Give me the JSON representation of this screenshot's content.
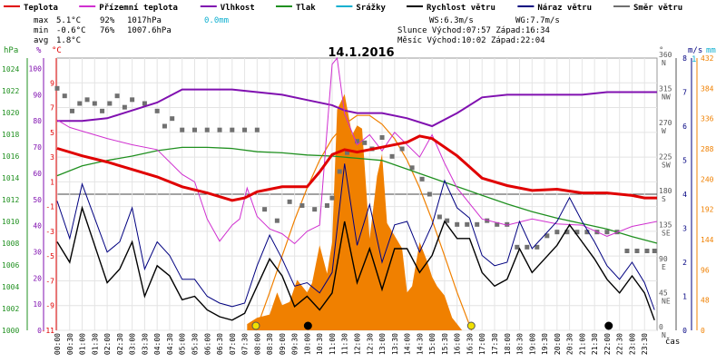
{
  "chart_data": {
    "type": "line",
    "title": "14.1.2016",
    "legend": [
      {
        "label": "Teplota",
        "color": "#e00000"
      },
      {
        "label": "Přízemní teplota",
        "color": "#d030d0"
      },
      {
        "label": "Vlhkost",
        "color": "#8010b0"
      },
      {
        "label": "Tlak",
        "color": "#209020"
      },
      {
        "label": "Srážky",
        "color": "#10b0d0"
      },
      {
        "label": "Rychlost větru",
        "color": "#000000"
      },
      {
        "label": "Náraz větru",
        "color": "#000080"
      },
      {
        "label": "Směr větru",
        "color": "#707070"
      }
    ],
    "stats": {
      "max_label": "max",
      "max_temp": "5.1°C",
      "max_hum": "92%",
      "max_pres": "1017hPa",
      "max_rain": "0.0mm",
      "min_label": "min",
      "min_temp": "-0.6°C",
      "min_hum": "76%",
      "min_pres": "1007.6hPa",
      "avg_label": "avg",
      "avg_temp": "1.8°C",
      "ws": "WS:6.3m/s",
      "wg": "WG:7.7m/s",
      "sun": "Slunce Východ:07:57  Západ:16:34",
      "moon": "Měsíc  Východ:10:02  Západ:22:04"
    },
    "axes": {
      "hpa_title": "hPa",
      "pct_title": "%",
      "temp_title": "°C",
      "deg_title": "°",
      "ms_title": "m/s",
      "mm_title": "mm",
      "ms_top": "1",
      "time_title": "čas",
      "hpa_ticks": [
        "1000",
        "1002",
        "1004",
        "1006",
        "1008",
        "1010",
        "1012",
        "1014",
        "1016",
        "1018",
        "1020",
        "1022",
        "1024"
      ],
      "pct_ticks": [
        "0",
        "10",
        "20",
        "30",
        "40",
        "50",
        "60",
        "70",
        "80",
        "90",
        "100"
      ],
      "temp_ticks": [
        "-11",
        "-9",
        "-7",
        "-5",
        "-3",
        "-1",
        "1",
        "3",
        "5",
        "7",
        "9"
      ],
      "deg_ticks": [
        "0",
        "45",
        "90",
        "135",
        "180",
        "225",
        "270",
        "315",
        "360"
      ],
      "dir_ticks": [
        "N",
        "NE",
        "E",
        "SE",
        "S",
        "SW",
        "W",
        "NW",
        "N"
      ],
      "ms_ticks": [
        "0",
        "1",
        "2",
        "3",
        "4",
        "5",
        "6",
        "7",
        "8"
      ],
      "solar_ticks": [
        "0",
        "48",
        "96",
        "144",
        "192",
        "240",
        "288",
        "336",
        "384",
        "432"
      ],
      "time_ticks": [
        "00:00",
        "00:30",
        "01:00",
        "01:30",
        "02:00",
        "02:30",
        "03:00",
        "03:30",
        "04:00",
        "04:30",
        "05:00",
        "05:30",
        "06:00",
        "06:30",
        "07:00",
        "07:30",
        "08:00",
        "08:30",
        "09:00",
        "09:30",
        "10:00",
        "10:30",
        "11:00",
        "11:30",
        "12:00",
        "12:30",
        "13:00",
        "13:30",
        "14:00",
        "14:30",
        "15:00",
        "15:30",
        "16:00",
        "16:30",
        "17:00",
        "17:30",
        "18:00",
        "18:30",
        "19:00",
        "19:30",
        "20:00",
        "20:30",
        "21:00",
        "21:30",
        "22:00",
        "22:30",
        "23:00",
        "23:30"
      ],
      "temp_range": [
        -11,
        11
      ],
      "hum_range": [
        0,
        104
      ],
      "pres_range": [
        1000,
        1025
      ],
      "wind_range": [
        0,
        8
      ],
      "dir_range": [
        0,
        360
      ],
      "solar_range": [
        0,
        432
      ]
    },
    "series": {
      "temperature": {
        "t": [
          0,
          1,
          2,
          3,
          4,
          5,
          6,
          7,
          7.5,
          8,
          9,
          10,
          10.5,
          11,
          11.5,
          12,
          13,
          14,
          14.5,
          15,
          16,
          17,
          18,
          19,
          20,
          21,
          22,
          22.5,
          23,
          23.5,
          24
        ],
        "v": [
          3.7,
          3.1,
          2.6,
          2.0,
          1.4,
          0.6,
          0.1,
          -0.5,
          -0.3,
          0.2,
          0.6,
          0.6,
          1.8,
          3.2,
          3.6,
          3.4,
          3.8,
          4.2,
          4.7,
          4.5,
          3.1,
          1.3,
          0.7,
          0.3,
          0.4,
          0.1,
          0.1,
          0.0,
          -0.1,
          -0.3,
          -0.3
        ]
      },
      "ground_temperature": {
        "t": [
          0,
          0.5,
          1,
          2,
          3,
          4,
          5,
          5.5,
          6,
          6.5,
          7,
          7.3,
          7.6,
          8,
          8.5,
          9,
          9.5,
          10,
          10.5,
          11,
          11.2,
          11.5,
          12,
          12.5,
          13,
          13.5,
          14,
          14.5,
          15,
          15.5,
          16,
          17,
          18,
          19,
          20,
          21,
          22,
          23,
          24
        ],
        "v": [
          6.0,
          5.4,
          5.1,
          4.5,
          4.0,
          3.6,
          1.6,
          1.0,
          -2.0,
          -3.8,
          -2.5,
          -2.0,
          0.5,
          -1.8,
          -2.8,
          -3.2,
          -4.0,
          -3.0,
          -2.5,
          10.5,
          11.0,
          6.5,
          4.0,
          4.8,
          3.5,
          5.0,
          4.0,
          3.0,
          4.8,
          2.5,
          0.5,
          -2.0,
          -2.5,
          -2.0,
          -2.4,
          -2.5,
          -3.4,
          -2.6,
          -2.2
        ]
      },
      "humidity": {
        "t": [
          0,
          1,
          2,
          3,
          4,
          5,
          6,
          7,
          8,
          9,
          10,
          11,
          11.5,
          12,
          13,
          14,
          15,
          16,
          17,
          18,
          19,
          20,
          21,
          22,
          23,
          24
        ],
        "v": [
          80,
          80,
          81,
          84,
          87,
          92,
          92,
          92,
          91,
          90,
          88,
          86,
          84,
          83,
          83,
          81,
          78,
          83,
          89,
          90,
          90,
          90,
          90,
          91,
          91,
          91
        ]
      },
      "pressure": {
        "t": [
          0,
          1,
          2,
          3,
          4,
          5,
          6,
          7,
          8,
          9,
          10,
          11,
          12,
          13,
          14,
          15,
          16,
          17,
          18,
          19,
          20,
          21,
          22,
          23,
          24
        ],
        "v": [
          1014.2,
          1015.1,
          1015.6,
          1016.0,
          1016.5,
          1016.8,
          1016.8,
          1016.7,
          1016.4,
          1016.3,
          1016.1,
          1016.0,
          1015.8,
          1015.6,
          1014.8,
          1014.0,
          1013.2,
          1012.4,
          1011.6,
          1010.9,
          1010.3,
          1009.8,
          1009.3,
          1008.6,
          1008.0
        ]
      },
      "wind_speed": {
        "t": [
          0,
          0.5,
          1,
          1.5,
          2,
          2.5,
          3,
          3.5,
          4,
          4.5,
          5,
          5.5,
          6,
          6.5,
          7,
          7.5,
          8,
          8.5,
          9,
          9.5,
          10,
          10.5,
          11,
          11.5,
          12,
          12.5,
          13,
          13.5,
          14,
          14.5,
          15,
          15.5,
          16,
          16.5,
          17,
          17.5,
          18,
          18.5,
          19,
          19.5,
          20,
          20.5,
          21,
          21.5,
          22,
          22.5,
          23,
          23.5,
          23.9
        ],
        "v": [
          2.6,
          2.0,
          3.6,
          2.5,
          1.4,
          1.8,
          2.6,
          1.0,
          1.9,
          1.6,
          0.9,
          1.0,
          0.6,
          0.4,
          0.3,
          0.5,
          1.3,
          2.1,
          1.6,
          0.7,
          1.0,
          0.6,
          1.1,
          3.2,
          1.4,
          2.4,
          1.2,
          2.4,
          2.4,
          1.7,
          2.2,
          3.2,
          2.7,
          2.7,
          1.7,
          1.3,
          1.5,
          2.4,
          1.7,
          2.1,
          2.5,
          3.1,
          2.6,
          2.1,
          1.5,
          1.1,
          1.6,
          1.1,
          0.3
        ]
      },
      "wind_gust": {
        "t": [
          0,
          0.5,
          1,
          1.5,
          2,
          2.5,
          3,
          3.5,
          4,
          4.5,
          5,
          5.5,
          6,
          6.5,
          7,
          7.5,
          8,
          8.5,
          9,
          9.5,
          10,
          10.5,
          11,
          11.5,
          12,
          12.5,
          13,
          13.5,
          14,
          14.5,
          15,
          15.5,
          16,
          16.5,
          17,
          17.5,
          18,
          18.5,
          19,
          19.5,
          20,
          20.5,
          21,
          21.5,
          22,
          22.5,
          23,
          23.5,
          23.9
        ],
        "v": [
          3.8,
          2.7,
          4.3,
          3.3,
          2.3,
          2.6,
          3.6,
          1.8,
          2.6,
          2.2,
          1.5,
          1.5,
          1.0,
          0.8,
          0.7,
          0.8,
          1.9,
          2.8,
          2.1,
          1.3,
          1.4,
          1.1,
          1.7,
          4.9,
          2.5,
          3.7,
          2.0,
          3.1,
          3.2,
          2.3,
          3.1,
          4.4,
          3.6,
          3.3,
          2.2,
          1.9,
          2.0,
          3.2,
          2.4,
          2.8,
          3.2,
          3.9,
          3.2,
          2.6,
          1.9,
          1.5,
          2.0,
          1.4,
          0.6
        ]
      },
      "wind_direction": {
        "t": [
          0,
          0.3,
          0.6,
          0.9,
          1.2,
          1.5,
          1.8,
          2.1,
          2.4,
          2.7,
          3.0,
          3.5,
          4.0,
          4.3,
          4.6,
          5.0,
          5.5,
          6.0,
          6.5,
          7.0,
          7.5,
          8.0,
          8.3,
          8.8,
          9.3,
          9.8,
          10.3,
          10.8,
          11.0,
          11.3,
          11.6,
          12.0,
          12.3,
          12.6,
          13.0,
          13.4,
          13.8,
          14.2,
          14.6,
          14.9,
          15.3,
          15.6,
          16.0,
          16.4,
          16.8,
          17.2,
          17.6,
          18.0,
          18.4,
          18.8,
          19.2,
          19.6,
          20.0,
          20.4,
          20.8,
          21.2,
          21.6,
          22.0,
          22.4,
          22.8,
          23.2,
          23.6,
          23.9
        ],
        "v": [
          320,
          310,
          290,
          300,
          305,
          300,
          290,
          300,
          310,
          295,
          305,
          300,
          290,
          270,
          280,
          265,
          265,
          265,
          265,
          265,
          265,
          265,
          160,
          145,
          170,
          165,
          160,
          165,
          175,
          210,
          235,
          250,
          248,
          240,
          255,
          230,
          240,
          215,
          200,
          180,
          150,
          145,
          140,
          140,
          140,
          145,
          140,
          140,
          110,
          110,
          110,
          125,
          130,
          130,
          130,
          130,
          130,
          130,
          130,
          105,
          105,
          105,
          105
        ]
      },
      "solar": {
        "t": [
          7.6,
          8.0,
          8.5,
          8.8,
          9.0,
          9.3,
          9.6,
          10.0,
          10.2,
          10.5,
          10.8,
          11.0,
          11.2,
          11.5,
          11.8,
          12.0,
          12.2,
          12.5,
          12.8,
          13.0,
          13.2,
          13.5,
          13.8,
          14.0,
          14.2,
          14.5,
          14.8,
          15.0,
          15.2,
          15.5,
          15.8,
          16.2
        ],
        "v": [
          10,
          20,
          25,
          60,
          40,
          45,
          80,
          60,
          75,
          135,
          90,
          140,
          350,
          375,
          310,
          325,
          320,
          145,
          245,
          280,
          170,
          150,
          130,
          60,
          70,
          140,
          110,
          85,
          70,
          55,
          20,
          0
        ]
      },
      "solar_max": {
        "t": [
          7.95,
          8.5,
          9,
          9.5,
          10,
          10.5,
          11,
          11.5,
          12,
          12.5,
          13,
          13.5,
          14,
          14.5,
          15,
          15.5,
          16,
          16.58
        ],
        "v": [
          0,
          60,
          118,
          175,
          226,
          270,
          304,
          327,
          341,
          341,
          327,
          304,
          270,
          226,
          175,
          118,
          60,
          0
        ]
      }
    },
    "markers": {
      "sunrise": "07:57",
      "sunset": "16:34",
      "moonrise": "10:02",
      "moonset": "22:04"
    }
  }
}
